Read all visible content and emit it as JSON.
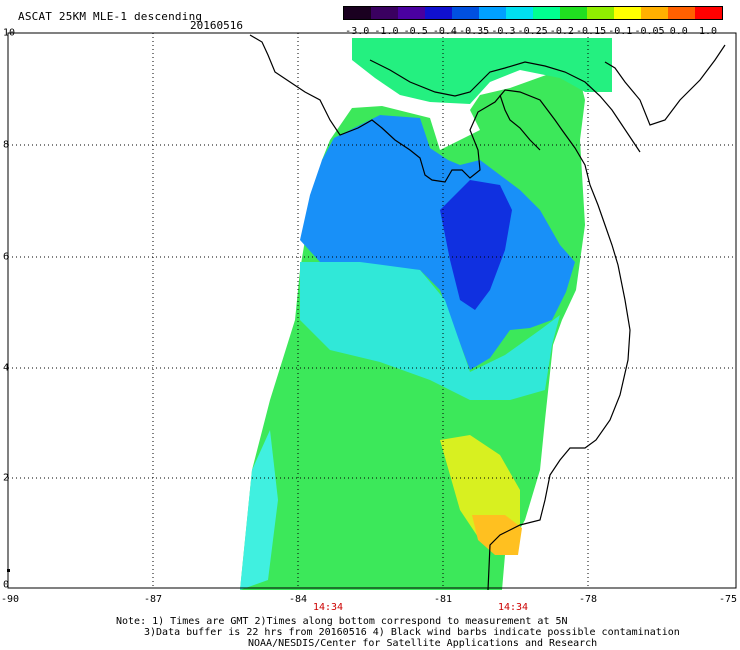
{
  "title": "ASCAT 25KM MLE-1 descending",
  "date": "20160516",
  "colorbar": {
    "labels": [
      "-3.0",
      "-1.0",
      "-0.5",
      "-0.4",
      "-0.35",
      "-0.3",
      "-0.25",
      "-0.2",
      "-0.15",
      "-0.1",
      "-0.05",
      "0.0",
      "1.0"
    ],
    "colors": [
      "#1a0020",
      "#3a0060",
      "#4a00a0",
      "#1010d0",
      "#0050e0",
      "#00a0ff",
      "#00e0f0",
      "#00ff90",
      "#20e020",
      "#90ee00",
      "#ffff00",
      "#ffb000",
      "#ff6000",
      "#ff0000"
    ]
  },
  "y_axis_labels": [
    "10",
    "8",
    "6",
    "4",
    "2",
    "0"
  ],
  "x_axis_labels": [
    "-90",
    "-87",
    "-84",
    "-81",
    "-78",
    "-75"
  ],
  "time_labels": [
    "14:34",
    "14:34"
  ],
  "notes": [
    "Note: 1) Times are GMT 2)Times along bottom correspond to measurement at 5N",
    "3)Data buffer is 22 hrs from 20160516 4) Black wind barbs indicate possible contamination",
    "NOAA/NESDIS/Center for Satellite Applications and Research"
  ]
}
